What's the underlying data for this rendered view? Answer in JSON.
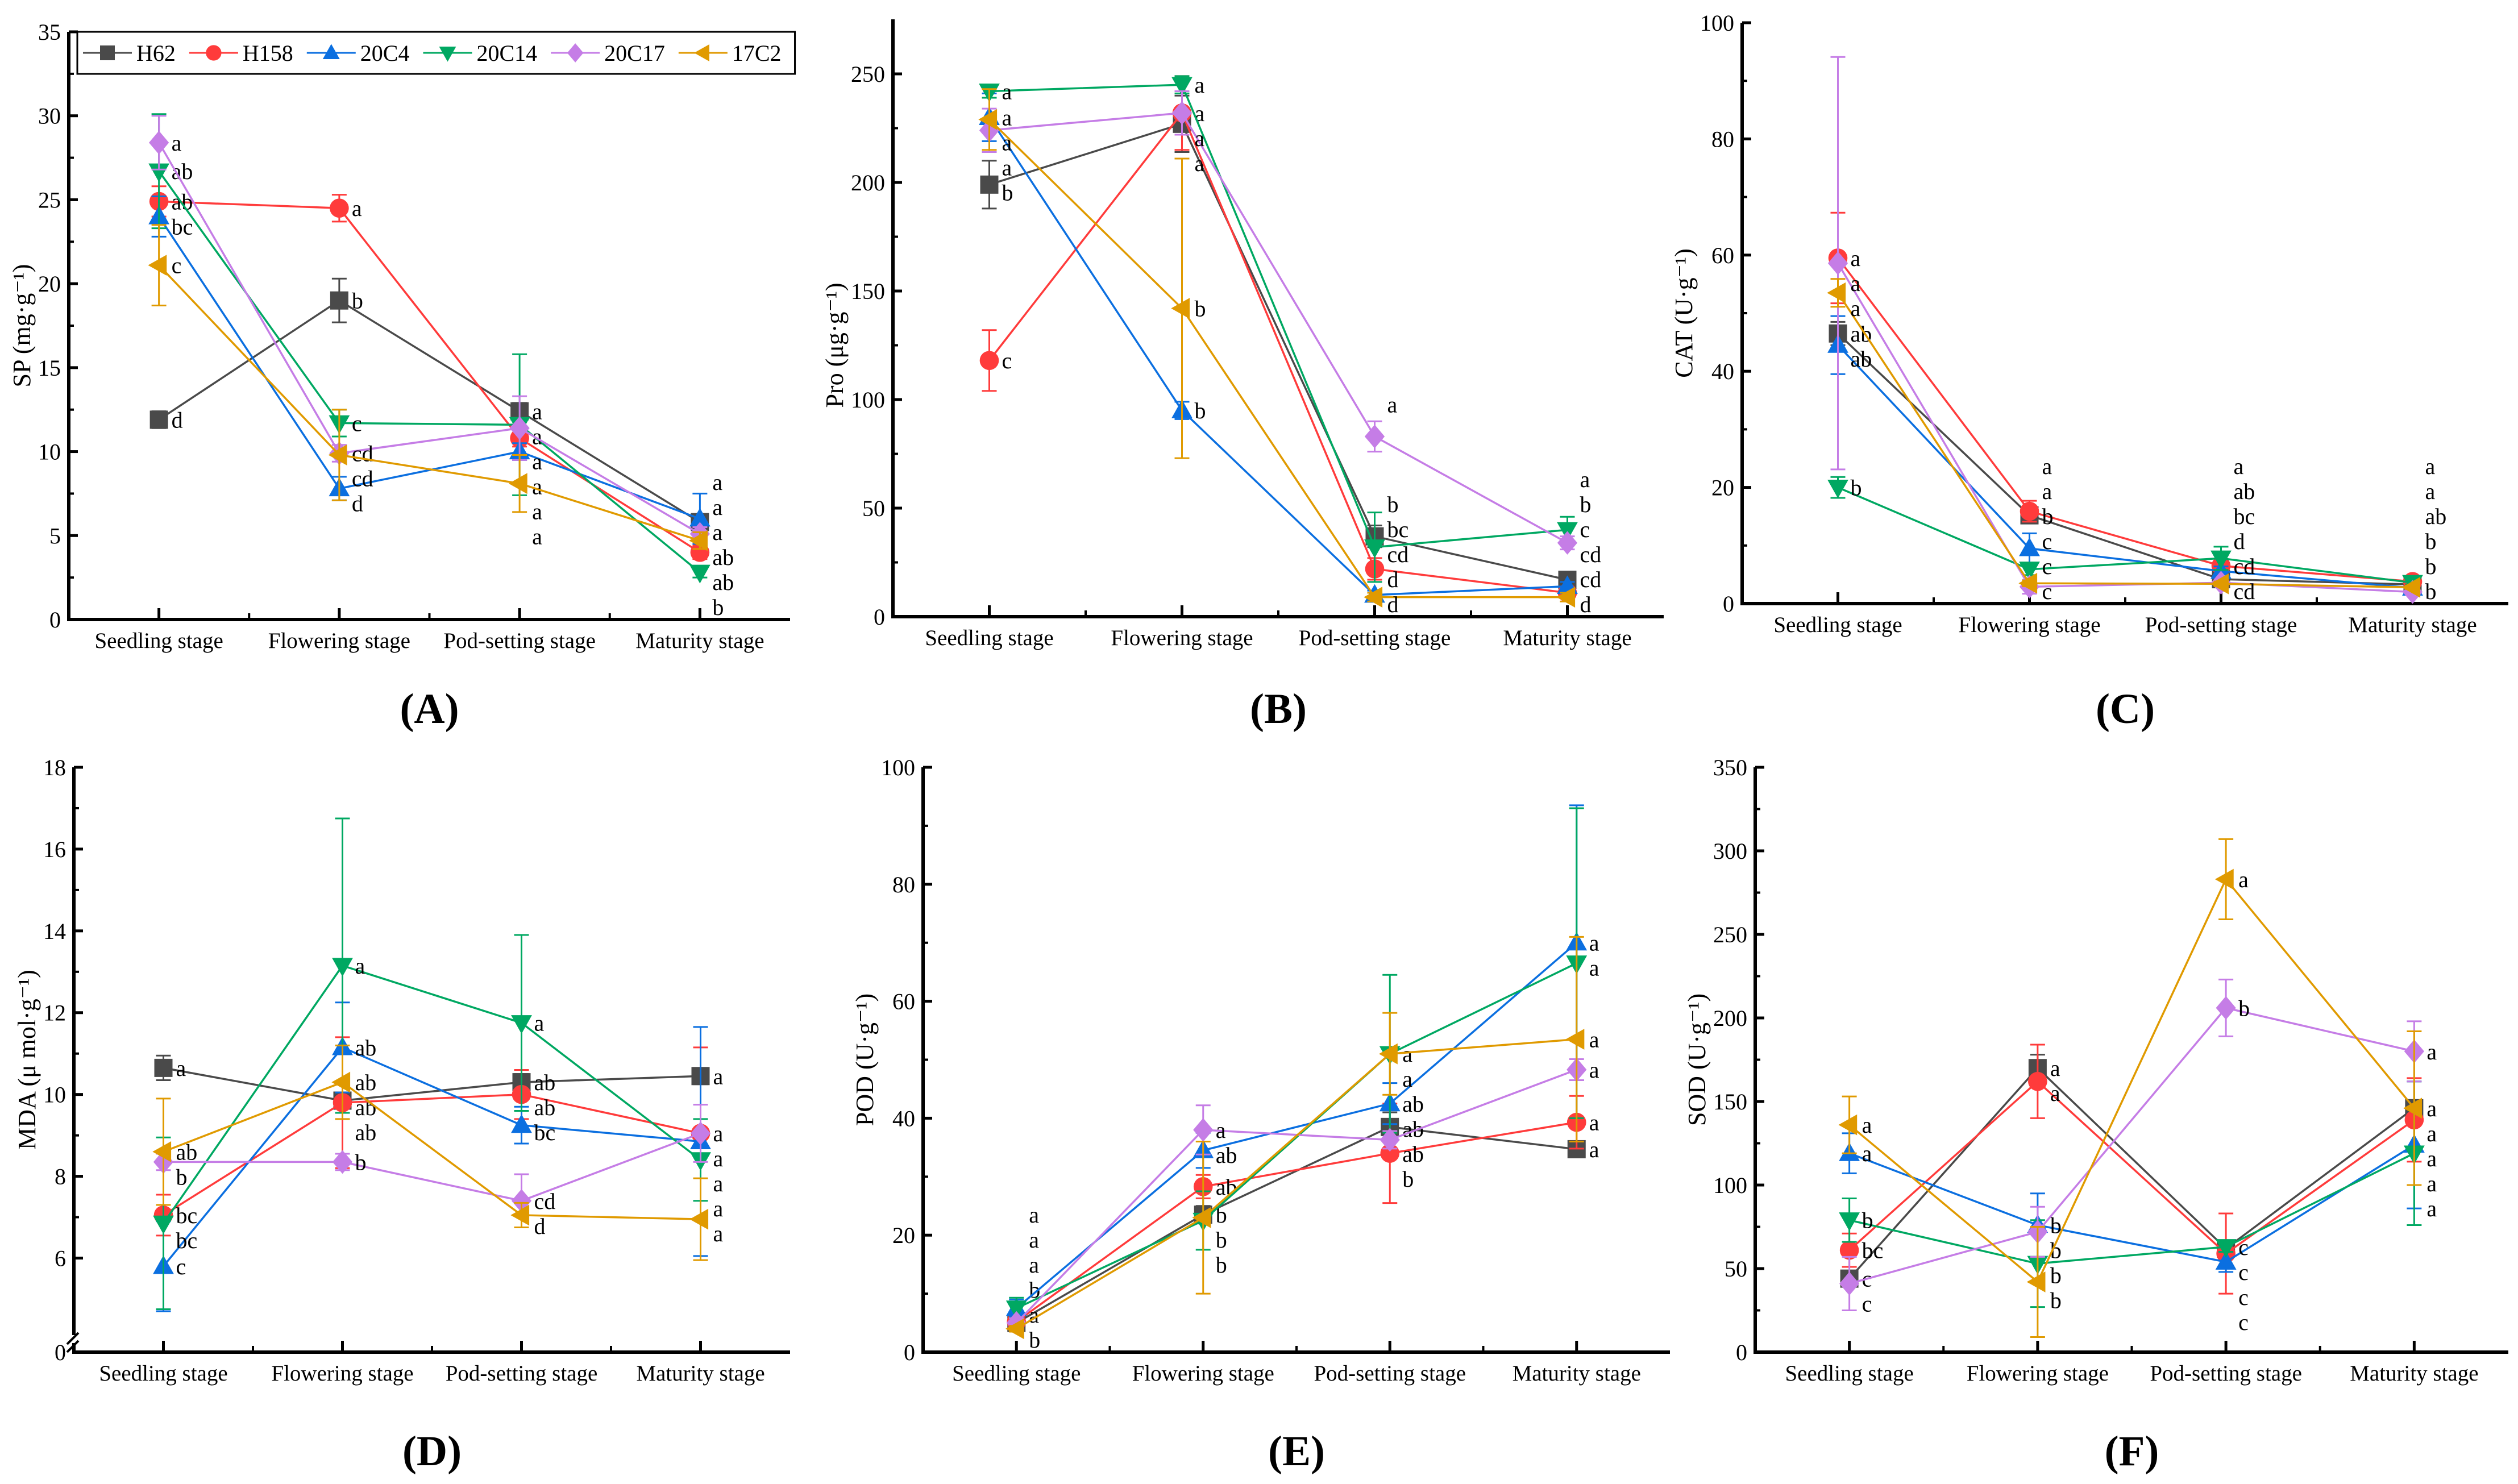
{
  "legend": [
    "H62",
    "H158",
    "20C4",
    "20C14",
    "20C17",
    "17C2"
  ],
  "colors": {
    "H62": "#4a4a4a",
    "H158": "#ff3b3b",
    "20C4": "#0b6fe0",
    "20C14": "#00a862",
    "20C17": "#c57de6",
    "17C2": "#e09a00"
  },
  "markers": {
    "H62": "square",
    "H158": "circle",
    "20C4": "triangle-up",
    "20C14": "triangle-down",
    "20C17": "diamond",
    "17C2": "triangle-left"
  },
  "chart_data": [
    {
      "panel": "(A)",
      "type": "line",
      "ylabel": "SP (mg·g⁻¹)",
      "ylim": [
        0,
        35
      ],
      "yticks": [
        0,
        5,
        10,
        15,
        20,
        25,
        30,
        35
      ],
      "categories": [
        "Seedling stage",
        "Flowering stage",
        "Pod-setting stage",
        "Maturity stage"
      ],
      "legend_placement": "top",
      "series": [
        {
          "name": "H62",
          "values": [
            11.9,
            19.0,
            12.4,
            5.8
          ],
          "errors": [
            0.5,
            1.3,
            0.5,
            0.3
          ],
          "letters": [
            "d",
            "b",
            "a",
            "a"
          ]
        },
        {
          "name": "H158",
          "values": [
            24.9,
            24.5,
            10.8,
            4.0
          ],
          "errors": [
            0.9,
            0.8,
            0.5,
            0.4
          ],
          "letters": [
            "ab",
            "a",
            "a",
            "ab"
          ]
        },
        {
          "name": "20C4",
          "values": [
            24.0,
            7.8,
            10.0,
            6.0
          ],
          "errors": [
            1.2,
            0.7,
            0.5,
            1.5
          ],
          "letters": [
            "bc",
            "d",
            "a",
            "a"
          ]
        },
        {
          "name": "20C14",
          "values": [
            26.7,
            11.7,
            11.6,
            2.8
          ],
          "errors": [
            3.4,
            0.8,
            4.2,
            0.3
          ],
          "letters": [
            "ab",
            "c",
            "a",
            "b"
          ]
        },
        {
          "name": "20C17",
          "values": [
            28.4,
            9.9,
            11.4,
            5.1
          ],
          "errors": [
            1.6,
            0.5,
            1.9,
            0.4
          ],
          "letters": [
            "a",
            "cd",
            "a",
            "a"
          ]
        },
        {
          "name": "17C2",
          "values": [
            21.1,
            9.8,
            8.1,
            4.7
          ],
          "errors": [
            2.4,
            2.7,
            1.7,
            0.5
          ],
          "letters": [
            "c",
            "cd",
            "a",
            "ab"
          ]
        }
      ]
    },
    {
      "panel": "(B)",
      "type": "line",
      "ylabel": "Pro (μg·g⁻¹)",
      "ylim": [
        0,
        275
      ],
      "yticks": [
        0,
        50,
        100,
        150,
        200,
        250
      ],
      "categories": [
        "Seedling stage",
        "Flowering stage",
        "Pod-setting stage",
        "Maturity stage"
      ],
      "series": [
        {
          "name": "H62",
          "values": [
            199,
            227,
            37,
            17
          ],
          "errors": [
            11,
            13,
            5,
            2
          ],
          "letters": [
            "b",
            "a",
            "b",
            "c"
          ]
        },
        {
          "name": "H158",
          "values": [
            118,
            232,
            22,
            11
          ],
          "errors": [
            14,
            17,
            5,
            2
          ],
          "letters": [
            "c",
            "a",
            "cd",
            "cd"
          ]
        },
        {
          "name": "20C4",
          "values": [
            230,
            95,
            10,
            14
          ],
          "errors": [
            11,
            4,
            2,
            2
          ],
          "letters": [
            "a",
            "b",
            "d",
            "cd"
          ]
        },
        {
          "name": "20C14",
          "values": [
            242,
            245,
            32,
            40
          ],
          "errors": [
            3,
            4,
            16,
            6
          ],
          "letters": [
            "a",
            "a",
            "bc",
            "a"
          ]
        },
        {
          "name": "20C17",
          "values": [
            224,
            232,
            83,
            34
          ],
          "errors": [
            10,
            10,
            7,
            3
          ],
          "letters": [
            "a",
            "a",
            "a",
            "b"
          ]
        },
        {
          "name": "17C2",
          "values": [
            229,
            142,
            9,
            9
          ],
          "errors": [
            14,
            69,
            2,
            2
          ],
          "letters": [
            "a",
            "b",
            "d",
            "d"
          ]
        }
      ]
    },
    {
      "panel": "(C)",
      "type": "line",
      "ylabel": "CAT (U·g⁻¹)",
      "ylim": [
        0,
        100
      ],
      "yticks": [
        0,
        20,
        40,
        60,
        80,
        100
      ],
      "categories": [
        "Seedling stage",
        "Flowering stage",
        "Pod-setting stage",
        "Maturity stage"
      ],
      "series": [
        {
          "name": "H62",
          "values": [
            46.5,
            15.2,
            4.2,
            3.3
          ],
          "errors": [
            2.0,
            0.8,
            0.5,
            0.3
          ],
          "letters": [
            "ab",
            "a",
            "d",
            "ab"
          ]
        },
        {
          "name": "H158",
          "values": [
            59.5,
            15.9,
            6.5,
            3.8
          ],
          "errors": [
            7.8,
            1.8,
            0.8,
            0.4
          ],
          "letters": [
            "a",
            "a",
            "ab",
            "a"
          ]
        },
        {
          "name": "20C4",
          "values": [
            44.5,
            9.5,
            5.6,
            2.7
          ],
          "errors": [
            5.0,
            2.6,
            0.8,
            0.4
          ],
          "letters": [
            "ab",
            "b",
            "bc",
            "b"
          ]
        },
        {
          "name": "20C14",
          "values": [
            20.0,
            5.9,
            7.8,
            3.6
          ],
          "errors": [
            1.8,
            1.0,
            2.0,
            0.3
          ],
          "letters": [
            "b",
            "c",
            "a",
            "a"
          ]
        },
        {
          "name": "20C17",
          "values": [
            58.6,
            2.9,
            3.6,
            2.0
          ],
          "errors": [
            35.5,
            1.2,
            0.4,
            0.3
          ],
          "letters": [
            "a",
            "c",
            "cd",
            "b"
          ]
        },
        {
          "name": "17C2",
          "values": [
            53.5,
            3.5,
            3.4,
            2.8
          ],
          "errors": [
            2.4,
            0.5,
            0.4,
            0.3
          ],
          "letters": [
            "a",
            "c",
            "cd",
            "b"
          ]
        }
      ]
    },
    {
      "panel": "(D)",
      "type": "line",
      "ylabel": "MDA (μ mol·g⁻¹)",
      "ylim": [
        3.7,
        18
      ],
      "yticks": [
        6,
        8,
        10,
        12,
        14,
        16,
        18
      ],
      "axis_break": true,
      "axis_break_label": "0",
      "categories": [
        "Seedling stage",
        "Flowering stage",
        "Pod-setting stage",
        "Maturity stage"
      ],
      "series": [
        {
          "name": "H62",
          "values": [
            10.65,
            9.85,
            10.3,
            10.45
          ],
          "errors": [
            0.3,
            0.1,
            0.2,
            0.2
          ],
          "letters": [
            "a",
            "ab",
            "ab",
            "a"
          ]
        },
        {
          "name": "H158",
          "values": [
            7.05,
            9.8,
            10.0,
            9.05
          ],
          "errors": [
            0.5,
            1.6,
            0.6,
            2.1
          ],
          "letters": [
            "bc",
            "ab",
            "ab",
            "a"
          ]
        },
        {
          "name": "20C4",
          "values": [
            5.8,
            11.15,
            9.25,
            8.85
          ],
          "errors": [
            1.1,
            1.1,
            0.45,
            2.8
          ],
          "letters": [
            "c",
            "ab",
            "bc",
            "a"
          ]
        },
        {
          "name": "20C14",
          "values": [
            6.85,
            13.15,
            11.75,
            8.4
          ],
          "errors": [
            2.1,
            3.6,
            2.15,
            1.0
          ],
          "letters": [
            "bc",
            "a",
            "a",
            "a"
          ]
        },
        {
          "name": "20C17",
          "values": [
            8.35,
            8.35,
            7.4,
            9.05
          ],
          "errors": [
            0.2,
            0.2,
            0.65,
            0.7
          ],
          "letters": [
            "b",
            "b",
            "cd",
            "a"
          ]
        },
        {
          "name": "17C2",
          "values": [
            8.6,
            10.3,
            7.05,
            6.95
          ],
          "errors": [
            1.3,
            0.9,
            0.3,
            1.0
          ],
          "letters": [
            "ab",
            "ab",
            "d",
            "a"
          ]
        }
      ]
    },
    {
      "panel": "(E)",
      "type": "line",
      "ylabel": "POD (U·g⁻¹)",
      "ylim": [
        0,
        100
      ],
      "yticks": [
        0,
        20,
        40,
        60,
        80,
        100
      ],
      "categories": [
        "Seedling stage",
        "Flowering stage",
        "Pod-setting stage",
        "Maturity stage"
      ],
      "series": [
        {
          "name": "H62",
          "values": [
            5.0,
            23.5,
            38.5,
            34.7
          ],
          "errors": [
            0.6,
            1.5,
            2.5,
            1.2
          ],
          "letters": [
            "b",
            "b",
            "ab",
            "a"
          ]
        },
        {
          "name": "H158",
          "values": [
            5.2,
            28.3,
            34.0,
            39.3
          ],
          "errors": [
            0.8,
            2.0,
            8.5,
            4.5
          ],
          "letters": [
            "a",
            "ab",
            "b",
            "a"
          ]
        },
        {
          "name": "20C4",
          "values": [
            7.5,
            34.5,
            42.5,
            70.0
          ],
          "errors": [
            1.5,
            3.0,
            3.5,
            23.5
          ],
          "letters": [
            "a",
            "ab",
            "ab",
            "a"
          ]
        },
        {
          "name": "20C14",
          "values": [
            7.5,
            22.5,
            51.0,
            66.5
          ],
          "errors": [
            1.8,
            5.0,
            13.5,
            26.5
          ],
          "letters": [
            "a",
            "b",
            "a",
            "a"
          ]
        },
        {
          "name": "20C17",
          "values": [
            5.0,
            38.0,
            36.3,
            48.3
          ],
          "errors": [
            0.8,
            4.2,
            1.5,
            1.8
          ],
          "letters": [
            "a",
            "a",
            "ab",
            "a"
          ]
        },
        {
          "name": "17C2",
          "values": [
            4.0,
            23.0,
            51.0,
            53.5
          ],
          "errors": [
            0.5,
            13.0,
            7.0,
            17.5
          ],
          "letters": [
            "b",
            "b",
            "a",
            "a"
          ]
        }
      ]
    },
    {
      "panel": "(F)",
      "type": "line",
      "ylabel": "SOD (U·g⁻¹)",
      "ylim": [
        0,
        350
      ],
      "yticks": [
        0,
        50,
        100,
        150,
        200,
        250,
        300,
        350
      ],
      "categories": [
        "Seedling stage",
        "Flowering stage",
        "Pod-setting stage",
        "Maturity stage"
      ],
      "series": [
        {
          "name": "H62",
          "values": [
            44,
            170,
            62,
            146
          ],
          "errors": [
            3,
            8,
            3,
            4
          ],
          "letters": [
            "c",
            "a",
            "c",
            "a"
          ]
        },
        {
          "name": "H158",
          "values": [
            61,
            162,
            59,
            139
          ],
          "errors": [
            10,
            22,
            24,
            25
          ],
          "letters": [
            "bc",
            "a",
            "c",
            "a"
          ]
        },
        {
          "name": "20C4",
          "values": [
            119,
            76,
            54,
            124
          ],
          "errors": [
            12,
            19,
            6,
            38
          ],
          "letters": [
            "a",
            "b",
            "c",
            "a"
          ]
        },
        {
          "name": "20C14",
          "values": [
            79,
            53,
            63,
            119
          ],
          "errors": [
            13,
            26,
            3,
            43
          ],
          "letters": [
            "b",
            "b",
            "c",
            "a"
          ]
        },
        {
          "name": "20C17",
          "values": [
            41,
            72,
            206,
            180
          ],
          "errors": [
            16,
            15,
            17,
            18
          ],
          "letters": [
            "c",
            "b",
            "b",
            "a"
          ]
        },
        {
          "name": "17C2",
          "values": [
            136,
            42,
            283,
            146
          ],
          "errors": [
            17,
            33,
            24,
            46
          ],
          "letters": [
            "a",
            "b",
            "a",
            "a"
          ]
        }
      ]
    }
  ]
}
